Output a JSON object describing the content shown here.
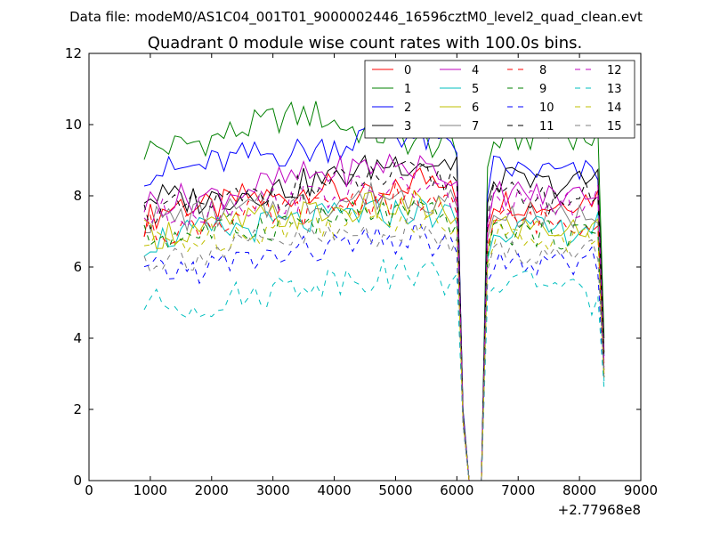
{
  "chart_data": {
    "type": "line",
    "suptitle": "Data file: modeM0/AS1C04_001T01_9000002446_16596cztM0_level2_quad_clean.evt",
    "title": "Quadrant 0 module wise count rates with 100.0s bins.",
    "xlabel": "",
    "ylabel": "",
    "xlim": [
      0,
      9000
    ],
    "ylim": [
      0,
      12
    ],
    "xticks": [
      "0",
      "1000",
      "2000",
      "3000",
      "4000",
      "5000",
      "6000",
      "7000",
      "8000",
      "9000"
    ],
    "yticks": [
      "0",
      "2",
      "4",
      "6",
      "8",
      "10",
      "12"
    ],
    "x_offset_label": "+2.77968e8",
    "grid": false,
    "legend_location": "upper-right",
    "legend_columns": 4,
    "x_segments": [
      {
        "start": 900,
        "end": 5900
      },
      {
        "start": 6600,
        "end": 8300
      }
    ],
    "gap_x": [
      6000,
      6100,
      6200,
      6300,
      6400,
      6500
    ],
    "series": [
      {
        "name": "0",
        "color": "#ff0000",
        "dash": "solid",
        "seg1": [
          7.3,
          7.8,
          7.6,
          8.0,
          7.9,
          8.3,
          8.0,
          7.8,
          8.5,
          8.6
        ],
        "seg2": [
          7.9,
          7.8,
          7.7,
          7.9,
          8.0
        ],
        "gap": [
          7.8,
          1.8,
          0,
          0,
          0,
          7.0
        ],
        "end": 3.1
      },
      {
        "name": "1",
        "color": "#008000",
        "dash": "solid",
        "seg1": [
          9.3,
          9.4,
          9.6,
          9.9,
          10.2,
          10.3,
          9.9,
          9.7,
          9.5,
          9.4
        ],
        "seg2": [
          9.5,
          9.6,
          9.7,
          9.7,
          9.6
        ],
        "gap": [
          9.1,
          2.0,
          0,
          0,
          0,
          8.8
        ],
        "end": 4.0
      },
      {
        "name": "2",
        "color": "#0000ff",
        "dash": "solid",
        "seg1": [
          8.7,
          8.7,
          8.9,
          9.1,
          9.2,
          9.3,
          9.5,
          9.9,
          9.6,
          9.4
        ],
        "seg2": [
          8.8,
          8.7,
          8.7,
          8.6,
          8.7
        ],
        "gap": [
          9.2,
          2.0,
          0,
          0,
          0,
          8.0
        ],
        "end": 3.5
      },
      {
        "name": "3",
        "color": "#000000",
        "dash": "solid",
        "seg1": [
          8.0,
          7.9,
          7.9,
          8.1,
          8.2,
          8.4,
          8.6,
          8.9,
          9.0,
          8.9
        ],
        "seg2": [
          8.5,
          8.4,
          8.3,
          8.3,
          8.5
        ],
        "gap": [
          9.1,
          1.9,
          0,
          0,
          0,
          7.8
        ],
        "end": 3.6
      },
      {
        "name": "4",
        "color": "#bf00bf",
        "dash": "solid",
        "seg1": [
          7.8,
          7.9,
          8.0,
          8.2,
          8.4,
          8.6,
          8.7,
          8.9,
          8.8,
          8.6
        ],
        "seg2": [
          8.1,
          8.1,
          8.0,
          8.0,
          8.2
        ],
        "gap": [
          8.4,
          1.8,
          0,
          0,
          0,
          7.2
        ],
        "end": 3.3
      },
      {
        "name": "5",
        "color": "#00bfbf",
        "dash": "solid",
        "seg1": [
          6.7,
          6.9,
          7.0,
          7.1,
          7.2,
          7.3,
          7.5,
          7.5,
          7.6,
          7.4
        ],
        "seg2": [
          7.1,
          7.1,
          7.0,
          7.0,
          7.2
        ],
        "gap": [
          7.2,
          1.7,
          0,
          0,
          0,
          6.2
        ],
        "end": 2.8
      },
      {
        "name": "6",
        "color": "#bfbf00",
        "dash": "solid",
        "seg1": [
          6.9,
          7.0,
          7.1,
          7.3,
          7.4,
          7.5,
          7.6,
          7.7,
          7.7,
          7.5
        ],
        "seg2": [
          7.2,
          7.1,
          7.1,
          7.0,
          7.1
        ],
        "gap": [
          7.4,
          1.7,
          0,
          0,
          0,
          6.4
        ],
        "end": 2.9
      },
      {
        "name": "7",
        "color": "#808080",
        "dash": "solid",
        "seg1": [
          7.3,
          7.4,
          7.5,
          7.6,
          7.7,
          7.8,
          7.9,
          8.0,
          8.0,
          7.9
        ],
        "seg2": [
          7.5,
          7.5,
          7.4,
          7.4,
          7.6
        ],
        "gap": [
          7.7,
          1.8,
          0,
          0,
          0,
          6.8
        ],
        "end": 3.1
      },
      {
        "name": "8",
        "color": "#ff0000",
        "dash": "dashed",
        "seg1": [
          7.0,
          7.1,
          7.3,
          7.4,
          7.5,
          7.6,
          7.8,
          7.9,
          7.9,
          7.7
        ],
        "seg2": [
          7.4,
          7.3,
          7.3,
          7.2,
          7.4
        ],
        "gap": [
          7.5,
          1.7,
          0,
          0,
          0,
          6.6
        ],
        "end": 3.0
      },
      {
        "name": "9",
        "color": "#008000",
        "dash": "dashed",
        "seg1": [
          6.8,
          6.9,
          7.0,
          7.1,
          7.2,
          7.3,
          7.4,
          7.5,
          7.5,
          7.3
        ],
        "seg2": [
          7.0,
          7.0,
          6.9,
          6.9,
          7.0
        ],
        "gap": [
          7.2,
          1.7,
          0,
          0,
          0,
          6.3
        ],
        "end": 2.9
      },
      {
        "name": "10",
        "color": "#0000ff",
        "dash": "dashed",
        "seg1": [
          5.8,
          5.9,
          6.0,
          6.2,
          6.3,
          6.5,
          6.6,
          6.7,
          6.8,
          6.6
        ],
        "seg2": [
          6.1,
          6.1,
          6.0,
          6.0,
          6.2
        ],
        "gap": [
          6.4,
          1.6,
          0,
          0,
          0,
          5.6
        ],
        "end": 2.8
      },
      {
        "name": "11",
        "color": "#000000",
        "dash": "dashed",
        "seg1": [
          7.5,
          7.6,
          7.8,
          7.9,
          8.1,
          8.2,
          8.4,
          8.5,
          8.6,
          8.4
        ],
        "seg2": [
          8.0,
          8.0,
          7.9,
          7.9,
          8.1
        ],
        "gap": [
          8.4,
          1.8,
          0,
          0,
          0,
          7.4
        ],
        "end": 3.4
      },
      {
        "name": "12",
        "color": "#bf00bf",
        "dash": "dashed",
        "seg1": [
          7.4,
          7.5,
          7.6,
          7.8,
          7.9,
          8.0,
          8.1,
          8.2,
          8.2,
          8.0
        ],
        "seg2": [
          7.8,
          7.8,
          7.7,
          7.7,
          7.9
        ],
        "gap": [
          8.0,
          1.8,
          0,
          0,
          0,
          7.0
        ],
        "end": 3.2
      },
      {
        "name": "13",
        "color": "#00bfbf",
        "dash": "dashed",
        "seg1": [
          5.0,
          4.9,
          5.0,
          5.2,
          5.4,
          5.6,
          5.7,
          5.8,
          5.9,
          5.6
        ],
        "seg2": [
          5.5,
          5.6,
          5.7,
          5.3,
          4.8
        ],
        "gap": [
          5.8,
          1.6,
          0,
          0,
          0,
          5.2
        ],
        "end": 2.6
      },
      {
        "name": "14",
        "color": "#bfbf00",
        "dash": "dashed",
        "seg1": [
          6.6,
          6.7,
          6.8,
          7.0,
          7.1,
          7.2,
          7.3,
          7.4,
          7.4,
          7.2
        ],
        "seg2": [
          6.9,
          6.8,
          6.8,
          6.7,
          6.9
        ],
        "gap": [
          7.1,
          1.7,
          0,
          0,
          0,
          6.1
        ],
        "end": 2.9
      },
      {
        "name": "15",
        "color": "#808080",
        "dash": "dashed",
        "seg1": [
          6.2,
          6.3,
          6.4,
          6.6,
          6.7,
          6.8,
          6.9,
          7.0,
          7.0,
          6.8
        ],
        "seg2": [
          6.5,
          6.4,
          6.4,
          6.3,
          6.5
        ],
        "gap": [
          6.8,
          1.6,
          0,
          0,
          0,
          5.9
        ],
        "end": 2.9
      }
    ]
  }
}
